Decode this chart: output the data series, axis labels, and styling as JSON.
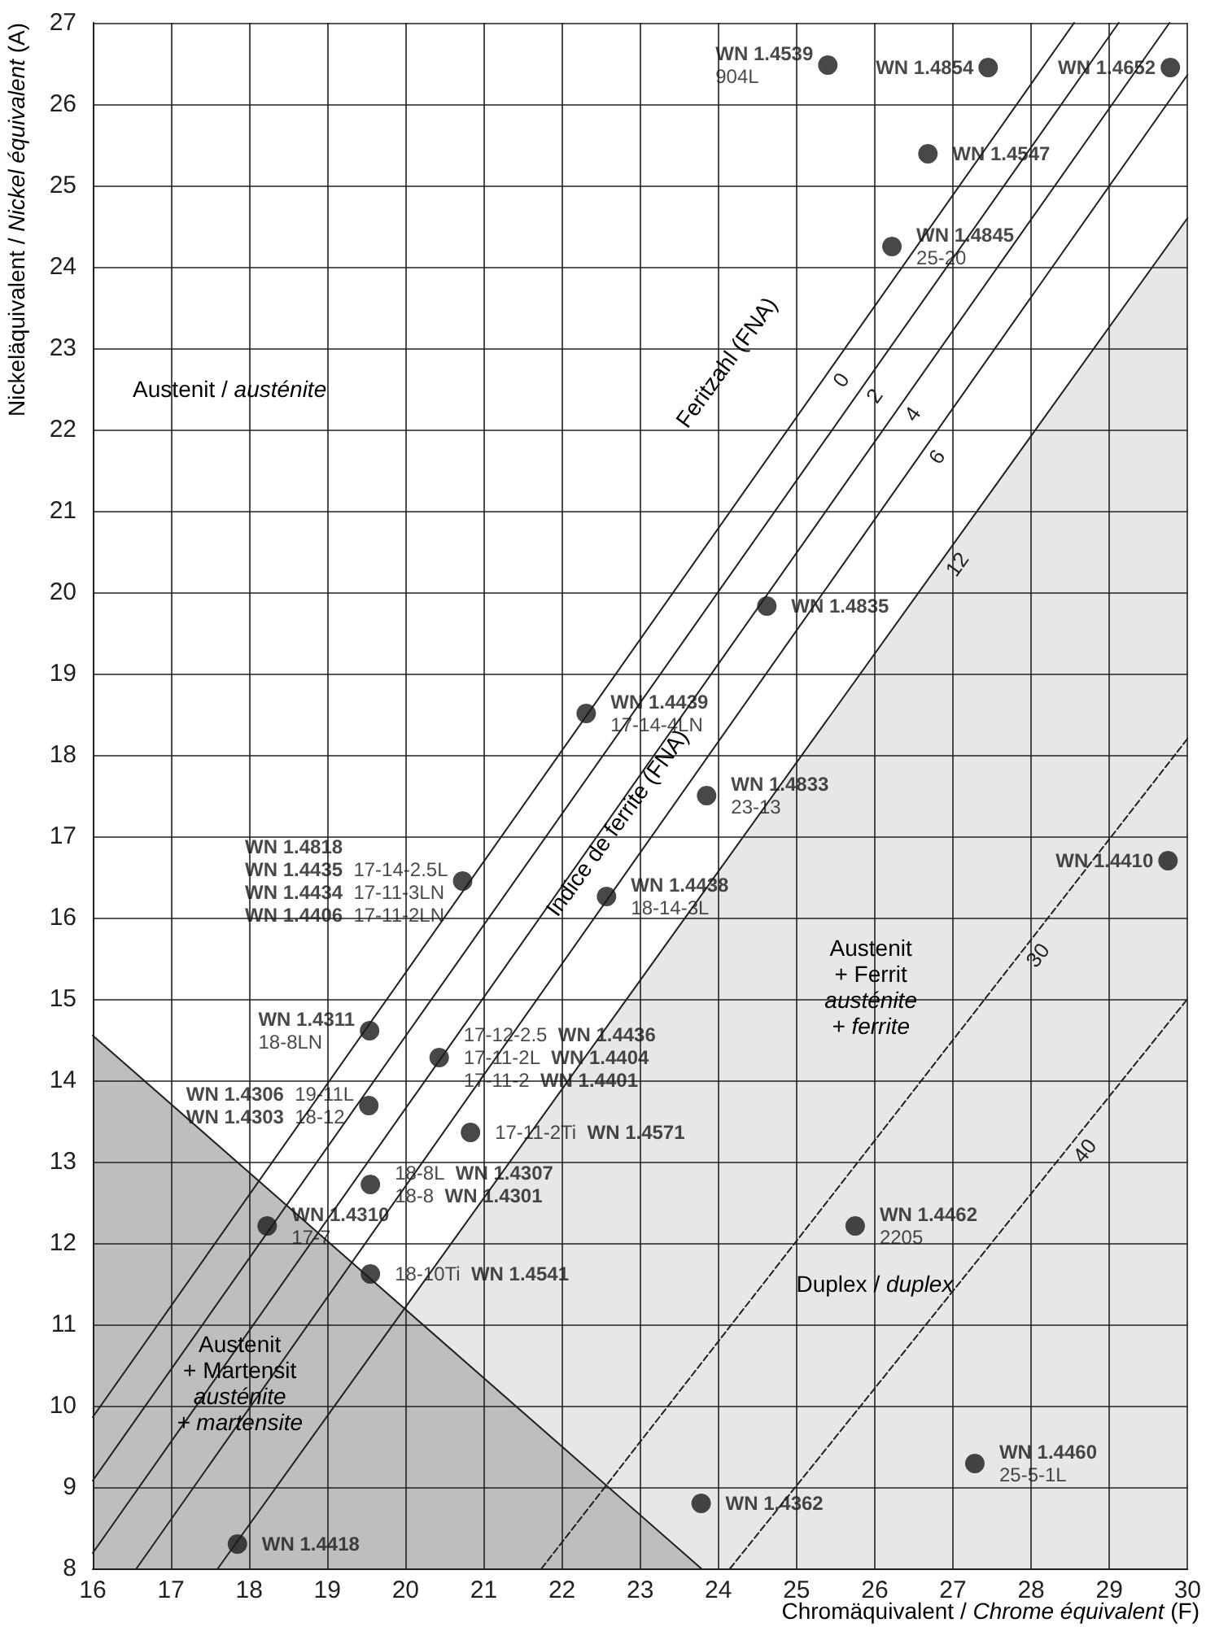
{
  "chart_data": {
    "type": "scatter",
    "xlabel": "Chromäquivalent / Chrome équivalent (F)",
    "ylabel": "Nickeläquivalent / Nickel équivalent (A)",
    "xlim": [
      16,
      30
    ],
    "xticks": [
      16,
      17,
      18,
      19,
      20,
      21,
      22,
      23,
      24,
      25,
      26,
      27,
      28,
      29,
      30
    ],
    "ylim": [
      8,
      27
    ],
    "yticks": [
      8,
      9,
      10,
      11,
      12,
      13,
      14,
      15,
      16,
      17,
      18,
      19,
      20,
      21,
      22,
      23,
      24,
      25,
      26,
      27
    ],
    "grid": true,
    "marker": "circle",
    "series": [
      {
        "type": "area",
        "name": "12",
        "color": "#e6e7e8",
        "marker": "none",
        "x": [
          17.6,
          30
        ],
        "values": [
          8,
          24.6
        ]
      },
      {
        "type": "area",
        "color": "#bcbec0",
        "marker": "none",
        "x": [
          16,
          23.78
        ],
        "values": [
          14.55,
          8
        ]
      },
      {
        "type": "line",
        "name": "0",
        "color": "#231f20",
        "marker": "none",
        "line_style": "solid",
        "x": [
          16,
          28.55
        ],
        "values": [
          9.86,
          27
        ]
      },
      {
        "type": "line",
        "name": "2",
        "color": "#231f20",
        "marker": "none",
        "line_style": "solid",
        "x": [
          16,
          29.12
        ],
        "values": [
          9.08,
          27
        ]
      },
      {
        "type": "line",
        "name": "4",
        "color": "#231f20",
        "marker": "none",
        "line_style": "solid",
        "x": [
          16,
          29.77
        ],
        "values": [
          8.19,
          27
        ]
      },
      {
        "type": "line",
        "name": "6",
        "color": "#231f20",
        "marker": "none",
        "line_style": "solid",
        "x": [
          16.56,
          30
        ],
        "values": [
          8,
          26.36
        ]
      },
      {
        "type": "line",
        "name": "30",
        "color": "#231f20",
        "marker": "none",
        "line_style": "dashed",
        "x": [
          21.74,
          30
        ],
        "values": [
          8,
          18.2
        ]
      },
      {
        "type": "line",
        "name": "40",
        "color": "#231f20",
        "marker": "none",
        "line_style": "dashed",
        "x": [
          24.15,
          30
        ],
        "values": [
          8,
          15.0
        ]
      },
      {
        "color": "#1a1a1a",
        "x": [
          25.4,
          27.45,
          29.78,
          26.68,
          26.22,
          24.62,
          22.31,
          23.85,
          20.73,
          22.57,
          29.75,
          20.43,
          19.54,
          19.53,
          20.83,
          19.55,
          18.23,
          19.55,
          25.75,
          27.28,
          23.78,
          17.85
        ],
        "values": [
          26.48,
          26.45,
          26.45,
          25.39,
          24.25,
          19.83,
          18.51,
          17.5,
          16.45,
          16.26,
          16.7,
          14.28,
          14.61,
          13.69,
          13.36,
          12.72,
          12.21,
          11.62,
          12.21,
          9.29,
          8.8,
          8.3
        ],
        "value_labels": [
          "WN 1.4539\n904L",
          "WN 1.4854",
          "WN 1.4652",
          "WN 1.4547",
          "WN 1.4845\n25-20",
          "WN 1.4835",
          "WN 1.4439\n17-14-4LN",
          "WN 1.4833\n23-13",
          "WN 1.4818\nWN 1.4435  17-14-2.5L\nWN 1.4434  17-11-3LN\nWN 1.4406  17-11-2LN",
          "WN 1.4438\n18-14-3L",
          "WN 1.4410",
          "17-12-2.5  WN 1.4436\n17-11-2L  WN 1.4404\n17-11-2  WN 1.4401",
          "WN 1.4311\n18-8LN",
          "WN 1.4306  19-11L\nWN 1.4303  18-12",
          "17-11-2Ti  WN 1.4571",
          "18-8L  WN 1.4307\n18-8  WN 1.4301",
          "WN 1.4310\n17-7",
          "18-10Ti  WN 1.4541",
          "WN 1.4462\n2205",
          "WN 1.4460\n25-5-1L",
          "WN 1.4362",
          "WN 1.4418"
        ]
      }
    ],
    "annotations": [
      "Austenit / austénite",
      "Feritzahl (FNA)",
      "Indice de ferrite (FNA)",
      "Austenit\n+ Ferrit\nausténite\n+ ferrite",
      "Duplex / duplex",
      "Austenit\n+ Martensit\nausténite\n+ martensite"
    ]
  }
}
